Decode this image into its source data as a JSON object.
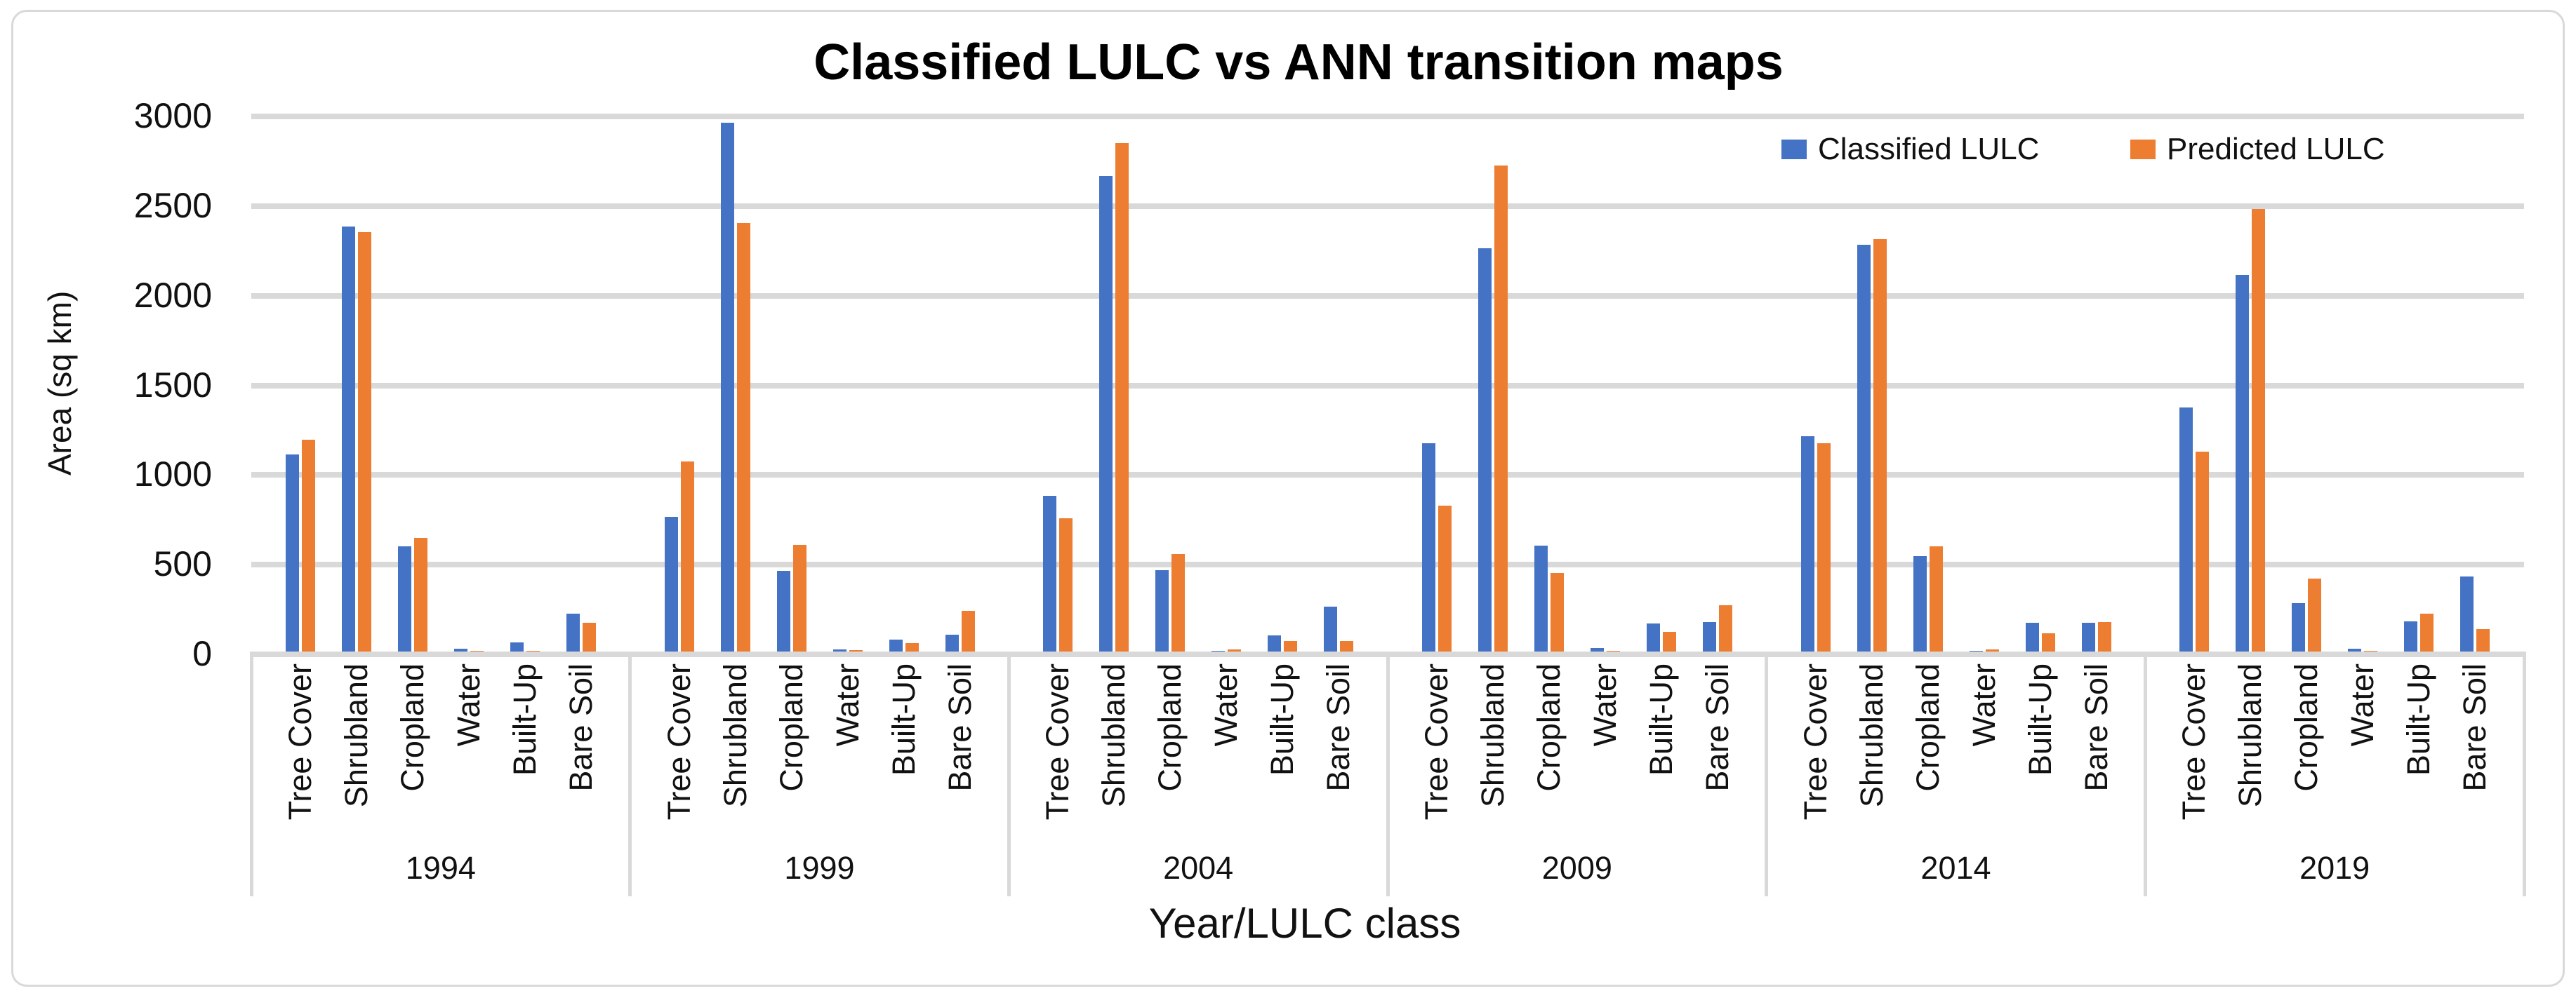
{
  "title": "Classified LULC vs ANN transition maps",
  "y_axis": {
    "title": "Area (sq km)"
  },
  "x_axis": {
    "title": "Year/LULC class"
  },
  "colors": {
    "classified": "#4472C4",
    "predicted": "#ED7D31",
    "gridline": "#D9D9D9",
    "text": "#111111"
  },
  "chart_data": {
    "type": "bar",
    "title": "Classified LULC vs ANN transition maps",
    "xlabel": "Year/LULC class",
    "ylabel": "Area (sq km)",
    "ylim": [
      0,
      3000
    ],
    "y_ticks": [
      0,
      500,
      1000,
      1500,
      2000,
      2500,
      3000
    ],
    "grid": true,
    "legend_position": "top-right",
    "years": [
      "1994",
      "1999",
      "2004",
      "2009",
      "2014",
      "2019"
    ],
    "categories": [
      "Tree Cover",
      "Shrubland",
      "Cropland",
      "Water",
      "Built-Up",
      "Bare Soil"
    ],
    "series": [
      {
        "name": "Classified LULC",
        "color": "#4472C4",
        "values": {
          "1994": [
            1100,
            2370,
            585,
            15,
            50,
            210
          ],
          "1999": [
            750,
            2950,
            450,
            10,
            65,
            95
          ],
          "2004": [
            870,
            2650,
            455,
            5,
            90,
            250
          ],
          "2009": [
            1160,
            2250,
            590,
            20,
            155,
            165
          ],
          "2014": [
            1200,
            2270,
            530,
            5,
            160,
            160
          ],
          "2019": [
            1360,
            2100,
            270,
            15,
            170,
            420
          ]
        }
      },
      {
        "name": "Predicted LULC",
        "color": "#ED7D31",
        "values": {
          "1994": [
            1180,
            2340,
            635,
            5,
            5,
            160
          ],
          "1999": [
            1060,
            2390,
            595,
            8,
            45,
            225
          ],
          "2004": [
            745,
            2835,
            545,
            10,
            60,
            60
          ],
          "2009": [
            815,
            2710,
            440,
            5,
            110,
            260
          ],
          "2014": [
            1160,
            2300,
            585,
            12,
            100,
            165
          ],
          "2019": [
            1115,
            2470,
            405,
            5,
            210,
            125
          ]
        }
      }
    ]
  }
}
